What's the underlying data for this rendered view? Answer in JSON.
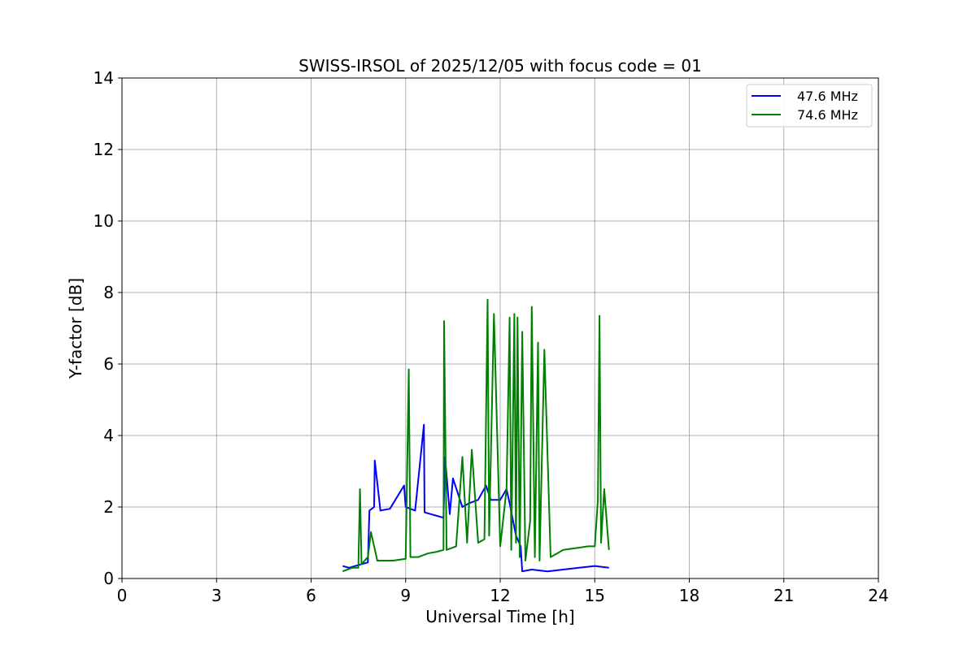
{
  "chart_data": {
    "type": "line",
    "title": "SWISS-IRSOL of 2025/12/05 with focus code = 01",
    "xlabel": "Universal Time [h]",
    "ylabel": "Y-factor [dB]",
    "xlim": [
      0,
      24
    ],
    "ylim": [
      0,
      14
    ],
    "xticks": [
      0,
      3,
      6,
      9,
      12,
      15,
      18,
      21,
      24
    ],
    "yticks": [
      0,
      2,
      4,
      6,
      8,
      10,
      12,
      14
    ],
    "grid": true,
    "legend_position": "top-right",
    "series": [
      {
        "name": "47.6 MHz",
        "color": "#0000ff",
        "x": [
          7.0,
          7.2,
          7.4,
          7.6,
          7.8,
          7.85,
          8.0,
          8.02,
          8.2,
          8.5,
          8.95,
          9.0,
          9.3,
          9.58,
          9.6,
          9.8,
          10.0,
          10.2,
          10.25,
          10.4,
          10.5,
          10.8,
          11.0,
          11.3,
          11.55,
          11.7,
          12.0,
          12.2,
          12.3,
          12.5,
          12.65,
          12.7,
          13.0,
          13.5,
          14.0,
          14.5,
          15.0,
          15.45
        ],
        "y": [
          0.35,
          0.3,
          0.35,
          0.4,
          0.45,
          1.9,
          2.0,
          3.3,
          1.9,
          1.95,
          2.6,
          2.0,
          1.9,
          4.3,
          1.85,
          1.8,
          1.75,
          1.7,
          3.4,
          1.8,
          2.8,
          2.0,
          2.1,
          2.2,
          2.6,
          2.2,
          2.2,
          2.5,
          2.1,
          1.2,
          0.9,
          0.2,
          0.25,
          0.2,
          0.25,
          0.3,
          0.35,
          0.3
        ]
      },
      {
        "name": "74.6 MHz",
        "color": "#008000",
        "x": [
          7.0,
          7.3,
          7.5,
          7.55,
          7.6,
          7.8,
          7.9,
          8.1,
          8.3,
          8.6,
          9.0,
          9.1,
          9.15,
          9.4,
          9.7,
          10.0,
          10.2,
          10.22,
          10.3,
          10.6,
          10.8,
          10.95,
          11.1,
          11.3,
          11.5,
          11.6,
          11.65,
          11.8,
          12.0,
          12.2,
          12.3,
          12.35,
          12.45,
          12.5,
          12.55,
          12.62,
          12.7,
          12.8,
          12.95,
          13.0,
          13.1,
          13.2,
          13.25,
          13.4,
          13.6,
          13.8,
          14.0,
          14.4,
          14.8,
          15.0,
          15.1,
          15.15,
          15.2,
          15.3,
          15.45
        ],
        "y": [
          0.2,
          0.3,
          0.3,
          2.5,
          0.4,
          0.6,
          1.3,
          0.5,
          0.5,
          0.5,
          0.55,
          5.85,
          0.6,
          0.6,
          0.7,
          0.75,
          0.8,
          7.2,
          0.8,
          0.9,
          3.4,
          1.0,
          3.6,
          1.0,
          1.1,
          7.8,
          1.2,
          7.4,
          0.9,
          2.5,
          7.3,
          0.8,
          7.4,
          1.0,
          7.3,
          0.6,
          6.9,
          0.5,
          1.6,
          7.6,
          0.6,
          6.6,
          0.5,
          6.4,
          0.6,
          0.7,
          0.8,
          0.85,
          0.9,
          0.9,
          2.2,
          7.35,
          1.0,
          2.5,
          0.8
        ]
      }
    ]
  }
}
